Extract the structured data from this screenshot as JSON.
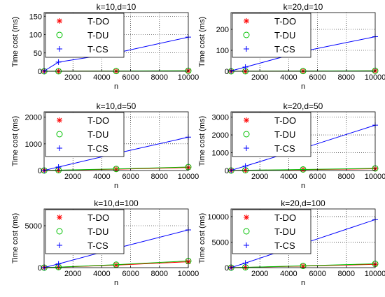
{
  "figure": {
    "background": "#ffffff"
  },
  "colors": {
    "T-DO": "#ff0000",
    "T-DU": "#00c000",
    "T-CS": "#0000ff"
  },
  "legend": {
    "placement": "top-left"
  },
  "chart_data": [
    {
      "type": "line",
      "title": "k=10,d=10",
      "xlabel": "n",
      "ylabel": "Time cost (ms)",
      "xlim": [
        0,
        10000
      ],
      "ylim": [
        0,
        160
      ],
      "grid": true,
      "xticks": [
        2000,
        4000,
        6000,
        8000,
        10000
      ],
      "yticks": [
        0,
        50,
        100,
        150
      ],
      "x": [
        10,
        1000,
        5000,
        10000
      ],
      "series": [
        {
          "name": "T-DO",
          "marker": "*",
          "values": [
            0.05,
            0.2,
            0.6,
            1.2
          ]
        },
        {
          "name": "T-DU",
          "marker": "o",
          "values": [
            0.05,
            0.2,
            0.7,
            1.5
          ]
        },
        {
          "name": "T-CS",
          "marker": "+",
          "values": [
            1,
            25,
            50,
            93
          ]
        }
      ]
    },
    {
      "type": "line",
      "title": "k=20,d=10",
      "xlabel": "n",
      "ylabel": "Time cost (ms)",
      "xlim": [
        0,
        10000
      ],
      "ylim": [
        0,
        280
      ],
      "grid": true,
      "xticks": [
        2000,
        4000,
        6000,
        8000,
        10000
      ],
      "yticks": [
        0,
        100,
        200
      ],
      "x": [
        10,
        1000,
        5000,
        10000
      ],
      "series": [
        {
          "name": "T-DO",
          "marker": "*",
          "values": [
            0.05,
            0.3,
            1,
            2
          ]
        },
        {
          "name": "T-DU",
          "marker": "o",
          "values": [
            0.05,
            0.3,
            1.2,
            2.5
          ]
        },
        {
          "name": "T-CS",
          "marker": "+",
          "values": [
            2,
            20,
            95,
            165
          ]
        }
      ]
    },
    {
      "type": "line",
      "title": "k=10,d=50",
      "xlabel": "n",
      "ylabel": "Time cost (ms)",
      "xlim": [
        0,
        10000
      ],
      "ylim": [
        0,
        2200
      ],
      "grid": true,
      "xticks": [
        2000,
        4000,
        6000,
        8000,
        10000
      ],
      "yticks": [
        0,
        1000,
        2000
      ],
      "x": [
        10,
        1000,
        5000,
        10000
      ],
      "series": [
        {
          "name": "T-DO",
          "marker": "*",
          "values": [
            1,
            10,
            50,
            110
          ]
        },
        {
          "name": "T-DU",
          "marker": "o",
          "values": [
            1,
            12,
            60,
            130
          ]
        },
        {
          "name": "T-CS",
          "marker": "+",
          "values": [
            5,
            130,
            640,
            1250
          ]
        }
      ]
    },
    {
      "type": "line",
      "title": "k=20,d=50",
      "xlabel": "n",
      "ylabel": "Time cost (ms)",
      "xlim": [
        0,
        10000
      ],
      "ylim": [
        0,
        3300
      ],
      "grid": true,
      "xticks": [
        2000,
        4000,
        6000,
        8000,
        10000
      ],
      "yticks": [
        0,
        1000,
        2000,
        3000
      ],
      "x": [
        10,
        1000,
        5000,
        10000
      ],
      "series": [
        {
          "name": "T-DO",
          "marker": "*",
          "values": [
            1,
            12,
            50,
            100
          ]
        },
        {
          "name": "T-DU",
          "marker": "o",
          "values": [
            1,
            15,
            60,
            120
          ]
        },
        {
          "name": "T-CS",
          "marker": "+",
          "values": [
            10,
            250,
            1250,
            2550
          ]
        }
      ]
    },
    {
      "type": "line",
      "title": "k=10,d=100",
      "xlabel": "n",
      "ylabel": "Time cost (ms)",
      "xlim": [
        0,
        10000
      ],
      "ylim": [
        0,
        7000
      ],
      "grid": true,
      "xticks": [
        2000,
        4000,
        6000,
        8000,
        10000
      ],
      "yticks": [
        0,
        5000
      ],
      "x": [
        10,
        1000,
        5000,
        10000
      ],
      "series": [
        {
          "name": "T-DO",
          "marker": "*",
          "values": [
            5,
            60,
            300,
            700
          ]
        },
        {
          "name": "T-DU",
          "marker": "o",
          "values": [
            5,
            70,
            350,
            800
          ]
        },
        {
          "name": "T-CS",
          "marker": "+",
          "values": [
            20,
            450,
            2300,
            4500
          ]
        }
      ]
    },
    {
      "type": "line",
      "title": "k=20,d=100",
      "xlabel": "n",
      "ylabel": "Time cost (ms)",
      "xlim": [
        0,
        10000
      ],
      "ylim": [
        0,
        11500
      ],
      "grid": true,
      "xticks": [
        2000,
        4000,
        6000,
        8000,
        10000
      ],
      "yticks": [
        0,
        5000,
        10000
      ],
      "x": [
        10,
        1000,
        5000,
        10000
      ],
      "series": [
        {
          "name": "T-DO",
          "marker": "*",
          "values": [
            5,
            60,
            300,
            650
          ]
        },
        {
          "name": "T-DU",
          "marker": "o",
          "values": [
            5,
            70,
            350,
            750
          ]
        },
        {
          "name": "T-CS",
          "marker": "+",
          "values": [
            30,
            900,
            4700,
            9400
          ]
        }
      ]
    }
  ]
}
